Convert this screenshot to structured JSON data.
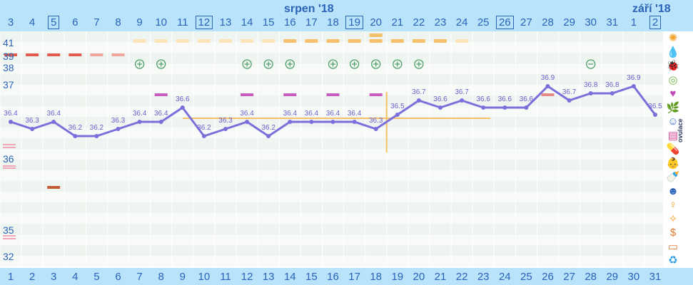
{
  "header": {
    "month_left": "srpen '18",
    "month_right": "září '18",
    "dates": [
      "3",
      "4",
      "5",
      "6",
      "7",
      "8",
      "9",
      "10",
      "11",
      "12",
      "13",
      "14",
      "15",
      "16",
      "17",
      "18",
      "19",
      "20",
      "21",
      "22",
      "23",
      "24",
      "25",
      "26",
      "27",
      "28",
      "29",
      "30",
      "31",
      "1",
      "2"
    ],
    "boxed_dates": [
      "5",
      "12",
      "19",
      "26",
      "2"
    ]
  },
  "footer": {
    "cycle_days": [
      "1",
      "2",
      "3",
      "4",
      "5",
      "6",
      "7",
      "8",
      "9",
      "10",
      "11",
      "12",
      "13",
      "14",
      "15",
      "16",
      "17",
      "18",
      "19",
      "20",
      "21",
      "22",
      "23",
      "24",
      "25",
      "26",
      "27",
      "28",
      "29",
      "30",
      "31"
    ]
  },
  "left_axis": {
    "labels": [
      "41",
      "39",
      "38",
      "37",
      "36",
      "35",
      "32"
    ]
  },
  "sidebar": {
    "app_label": "ovulace",
    "icons": [
      "sun-icon",
      "drop-icon",
      "bug-icon",
      "cervix-icon",
      "heart-icon",
      "leaf-icon",
      "smiley-icon",
      "document-icon",
      "pill-icon",
      "baby-icon",
      "bottle-icon",
      "face-icon",
      "figure-icon",
      "sparkle-icon",
      "money-icon",
      "monitor-icon",
      "cycle-icon"
    ]
  },
  "chart_data": {
    "type": "line",
    "x": [
      1,
      2,
      3,
      4,
      5,
      6,
      7,
      8,
      9,
      10,
      11,
      12,
      13,
      14,
      15,
      16,
      17,
      18,
      19,
      20,
      21,
      22,
      23,
      24,
      25,
      26,
      27,
      28,
      29,
      30,
      31
    ],
    "temperature": [
      36.4,
      36.3,
      36.4,
      36.2,
      36.2,
      36.3,
      36.4,
      36.4,
      36.6,
      36.2,
      36.3,
      36.4,
      36.2,
      36.4,
      36.4,
      36.4,
      36.4,
      36.3,
      36.5,
      36.7,
      36.6,
      36.7,
      36.6,
      36.6,
      36.6,
      36.9,
      36.7,
      36.8,
      36.8,
      36.9,
      36.5
    ],
    "temperature_labels": [
      "36.4",
      "36.3",
      "36.4",
      "36.2",
      "36.2",
      "36.3",
      "36.4",
      "36.4",
      "36.6",
      "36.2",
      "36.3",
      "36.4",
      "36.2",
      "36.4",
      "36.4",
      "36.4",
      "36.4",
      "36.3",
      "36.5",
      "36.7",
      "36.6",
      "36.7",
      "36.6",
      "36.6",
      "36.6",
      "36.9",
      "36.7",
      "36.8",
      "36.8",
      "36.9",
      "36.5"
    ],
    "coverline": 36.45,
    "ovulation_day": 18,
    "ovulation_tests_positive_days": [
      7,
      8,
      12,
      13,
      14,
      16,
      17,
      18,
      19,
      20
    ],
    "ovulation_test_negative_day": 28,
    "mucus_days": [
      7,
      8,
      9,
      10,
      11,
      12,
      13,
      14,
      15,
      16,
      17,
      18,
      19,
      20,
      21,
      22
    ],
    "mucus_peak_days": [
      14,
      15,
      16,
      17,
      18,
      19,
      20,
      21
    ],
    "period_days": [
      1,
      2,
      3,
      4,
      5,
      6
    ],
    "colors": {
      "line": "#7b6fdb",
      "coverline": "#f5c16a",
      "period": "#e05a4e",
      "mucus": "#f5c06a",
      "mucus_light": "#fde3b8",
      "sex": "#c75bc0",
      "test": "#4ea06a"
    }
  }
}
